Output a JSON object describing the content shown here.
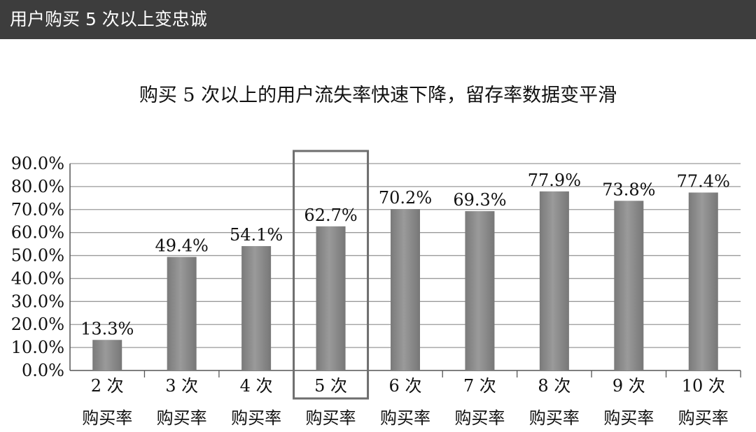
{
  "header": {
    "title": "用户购买 5 次以上变忠诚"
  },
  "chart_data": {
    "type": "bar",
    "title": "购买 5 次以上的用户流失率快速下降，留存率数据变平滑",
    "categories": [
      [
        "2 次",
        "购买率"
      ],
      [
        "3 次",
        "购买率"
      ],
      [
        "4 次",
        "购买率"
      ],
      [
        "5 次",
        "购买率"
      ],
      [
        "6 次",
        "购买率"
      ],
      [
        "7 次",
        "购买率"
      ],
      [
        "8 次",
        "购买率"
      ],
      [
        "9 次",
        "购买率"
      ],
      [
        "10 次",
        "购买率"
      ]
    ],
    "values": [
      13.3,
      49.4,
      54.1,
      62.7,
      70.2,
      69.3,
      77.9,
      73.8,
      77.4
    ],
    "data_labels": [
      "13.3%",
      "49.4%",
      "54.1%",
      "62.7%",
      "70.2%",
      "69.3%",
      "77.9%",
      "73.8%",
      "77.4%"
    ],
    "yticks": [
      "0.0%",
      "10.0%",
      "20.0%",
      "30.0%",
      "40.0%",
      "50.0%",
      "60.0%",
      "70.0%",
      "80.0%",
      "90.0%"
    ],
    "ylim": [
      0,
      90
    ],
    "grid": true,
    "highlighted_category": "5 次",
    "bar_color": "#8a8a8a",
    "grid_color": "#9a9a9a",
    "highlight_color": "#6e6e6e"
  }
}
